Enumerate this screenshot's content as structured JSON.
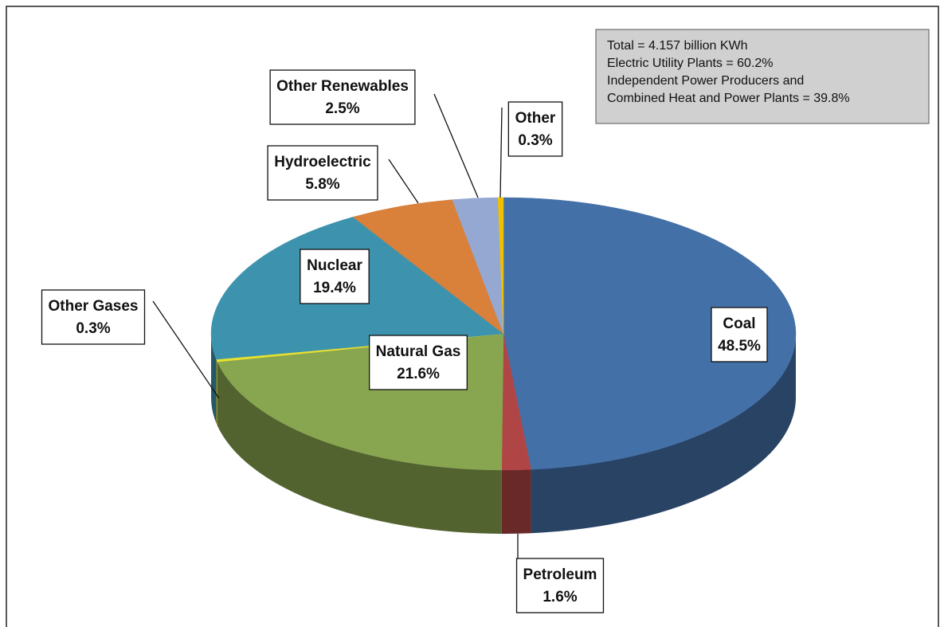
{
  "chart_data": {
    "type": "pie",
    "categories": [
      "Coal",
      "Petroleum",
      "Natural Gas",
      "Other Gases",
      "Nuclear",
      "Hydroelectric",
      "Other Renewables",
      "Other"
    ],
    "values": [
      48.5,
      1.6,
      21.6,
      0.3,
      19.4,
      5.8,
      2.5,
      0.3
    ],
    "value_labels": [
      "48.5%",
      "1.6%",
      "21.6%",
      "0.3%",
      "19.4%",
      "5.8%",
      "2.5%",
      "0.3%"
    ],
    "colors": [
      "#4470a8",
      "#b04545",
      "#88a550",
      "#e8e030",
      "#3d93ad",
      "#d9803a",
      "#94a8d2",
      "#f0c000"
    ],
    "annotation": [
      "Total = 4.157 billion KWh",
      "Electric Utility Plants = 60.2%",
      "Independent Power Producers and",
      "Combined Heat and Power Plants = 39.8%"
    ]
  }
}
